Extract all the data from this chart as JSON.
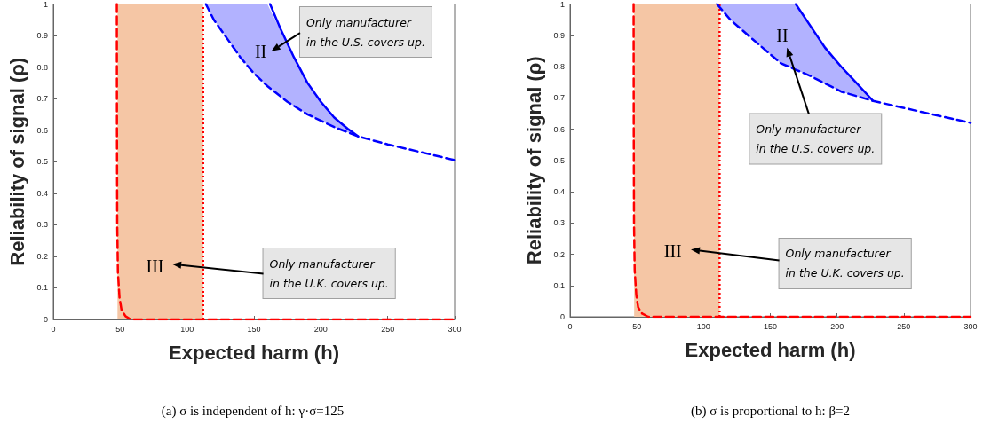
{
  "chart_data": [
    {
      "type": "line",
      "xlabel": "Expected harm (h)",
      "ylabel": "Reliability of signal (ρ)",
      "xlim": [
        0,
        300
      ],
      "ylim": [
        0,
        1
      ],
      "xticks": [
        0,
        50,
        100,
        150,
        200,
        250,
        300
      ],
      "yticks": [
        0,
        0.1,
        0.2,
        0.3,
        0.4,
        0.5,
        0.6,
        0.7,
        0.8,
        0.9,
        1
      ],
      "grid": false,
      "series": [
        {
          "color": "#ff0000",
          "line_style": "dashed",
          "x": [
            47.5,
            47.6,
            47.8,
            48.3,
            49.5,
            51,
            54,
            58,
            300
          ],
          "values": [
            1,
            0.6,
            0.3,
            0.15,
            0.07,
            0.03,
            0.01,
            0,
            0
          ]
        },
        {
          "color": "#0000ff",
          "line_style": "solid",
          "x": [
            162,
            170,
            180,
            190,
            200,
            210,
            220,
            228
          ],
          "values": [
            1,
            0.92,
            0.83,
            0.75,
            0.69,
            0.64,
            0.605,
            0.58
          ]
        },
        {
          "color": "#0000ff",
          "line_style": "dashed",
          "x": [
            114,
            120,
            130,
            140,
            150,
            160,
            175,
            190,
            210,
            228,
            250,
            275,
            300
          ],
          "values": [
            1,
            0.95,
            0.89,
            0.83,
            0.78,
            0.74,
            0.69,
            0.65,
            0.61,
            0.58,
            0.555,
            0.53,
            0.505
          ],
          "lower": [
            1,
            0.95,
            0.89,
            0.83,
            0.78,
            0.74,
            0.69,
            0.65,
            0.61,
            0.58,
            null,
            null,
            null
          ],
          "upper": [
            1,
            1,
            1,
            1,
            1,
            1,
            0.87,
            0.75,
            0.64,
            0.58,
            null,
            null,
            null
          ]
        }
      ],
      "ref_lines": [
        {
          "axis": "x",
          "value": 112,
          "color": "#ff0000",
          "line_style": "dotted"
        }
      ],
      "bands": [
        {
          "axis": "x",
          "from": 48,
          "to": 112,
          "color": "#f5c6a5"
        }
      ],
      "annotations": [
        "II",
        "III",
        "Only manufacturer\nin the U.S. covers up.",
        "Only manufacturer\nin the U.K. covers up.",
        "(a) σ is independent of h: γ·σ=125"
      ]
    },
    {
      "type": "line",
      "xlabel": "Expected harm (h)",
      "ylabel": "Reliability of signal (ρ)",
      "xlim": [
        0,
        300
      ],
      "ylim": [
        0,
        1
      ],
      "xticks": [
        0,
        50,
        100,
        150,
        200,
        250,
        300
      ],
      "yticks": [
        0,
        0.1,
        0.2,
        0.3,
        0.4,
        0.5,
        0.6,
        0.7,
        0.8,
        0.9,
        1
      ],
      "grid": false,
      "series": [
        {
          "color": "#ff0000",
          "line_style": "dashed",
          "x": [
            47.6,
            47.7,
            47.9,
            48.4,
            49.6,
            51,
            54,
            58.5,
            300
          ],
          "values": [
            1,
            0.6,
            0.3,
            0.15,
            0.07,
            0.03,
            0.01,
            0,
            0
          ]
        },
        {
          "color": "#0000ff",
          "line_style": "solid",
          "x": [
            169,
            180,
            191,
            203,
            214,
            227
          ],
          "values": [
            1,
            0.93,
            0.86,
            0.8,
            0.75,
            0.69
          ]
        },
        {
          "color": "#0000ff",
          "line_style": "dashed",
          "x": [
            110,
            120,
            136,
            158,
            169,
            180,
            203,
            227,
            258,
            300
          ],
          "values": [
            1,
            0.95,
            0.89,
            0.81,
            0.79,
            0.77,
            0.72,
            0.69,
            0.66,
            0.62
          ],
          "lower": [
            1,
            0.95,
            0.89,
            0.81,
            0.79,
            0.77,
            0.72,
            0.69,
            null,
            null
          ],
          "upper": [
            1,
            1,
            1,
            1,
            1,
            0.93,
            0.8,
            0.69,
            null,
            null
          ]
        }
      ],
      "ref_lines": [
        {
          "axis": "x",
          "value": 112,
          "color": "#ff0000",
          "line_style": "dotted"
        }
      ],
      "bands": [
        {
          "axis": "x",
          "from": 48,
          "to": 112,
          "color": "#f5c6a5"
        }
      ],
      "annotations": [
        "II",
        "III",
        "Only manufacturer\nin the U.S. covers up.",
        "Only manufacturer\nin the U.K. covers up.",
        "(b) σ is proportional to h: β=2"
      ]
    }
  ]
}
